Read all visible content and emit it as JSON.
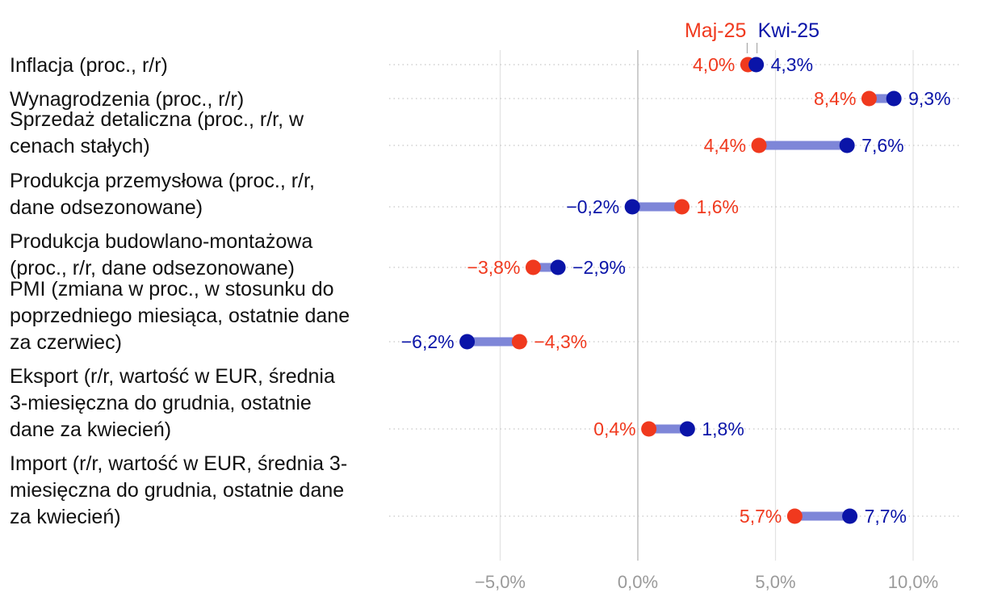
{
  "chart_data": {
    "type": "dumbbell",
    "legend": [
      {
        "name": "Maj-25",
        "color": "#f0391e"
      },
      {
        "name": "Kwi-25",
        "color": "#0a14a8"
      }
    ],
    "x_ticks": [
      -5,
      0,
      5,
      10
    ],
    "x_tick_labels": [
      "−5,0%",
      "0,0%",
      "5,0%",
      "10,0%"
    ],
    "xlim": [
      -9.3,
      11.7
    ],
    "connector_color": "#7e86d8",
    "categories": [
      {
        "lines": [
          "Inflacja (proc., r/r)"
        ],
        "maj": 4.0,
        "kwi": 4.3,
        "maj_label": "4,0%",
        "kwi_label": "4,3%"
      },
      {
        "lines": [
          "Wynagrodzenia (proc., r/r)"
        ],
        "maj": 8.4,
        "kwi": 9.3,
        "maj_label": "8,4%",
        "kwi_label": "9,3%"
      },
      {
        "lines": [
          "Sprzedaż detaliczna (proc., r/r, w",
          "cenach stałych)"
        ],
        "maj": 4.4,
        "kwi": 7.6,
        "maj_label": "4,4%",
        "kwi_label": "7,6%"
      },
      {
        "lines": [
          "Produkcja przemysłowa (proc., r/r,",
          "dane odsezonowane)"
        ],
        "maj": 1.6,
        "kwi": -0.2,
        "maj_label": "1,6%",
        "kwi_label": "−0,2%"
      },
      {
        "lines": [
          "Produkcja budowlano-montażowa",
          "(proc., r/r, dane odsezonowane)"
        ],
        "maj": -3.8,
        "kwi": -2.9,
        "maj_label": "−3,8%",
        "kwi_label": "−2,9%"
      },
      {
        "lines": [
          "PMI (zmiana w proc., w stosunku do",
          "poprzedniego miesiąca, ostatnie dane",
          "za czerwiec)"
        ],
        "maj": -4.3,
        "kwi": -6.2,
        "maj_label": "−4,3%",
        "kwi_label": "−6,2%"
      },
      {
        "lines": [
          "Eksport (r/r, wartość w EUR, średnia",
          "3-miesięczna do grudnia, ostatnie",
          "dane za kwiecień)"
        ],
        "maj": 0.4,
        "kwi": 1.8,
        "maj_label": "0,4%",
        "kwi_label": "1,8%"
      },
      {
        "lines": [
          "Import (r/r, wartość w EUR, średnia 3-",
          "miesięczna do grudnia, ostatnie dane",
          "za kwiecień)"
        ],
        "maj": 5.7,
        "kwi": 7.7,
        "maj_label": "5,7%",
        "kwi_label": "7,7%"
      }
    ]
  }
}
